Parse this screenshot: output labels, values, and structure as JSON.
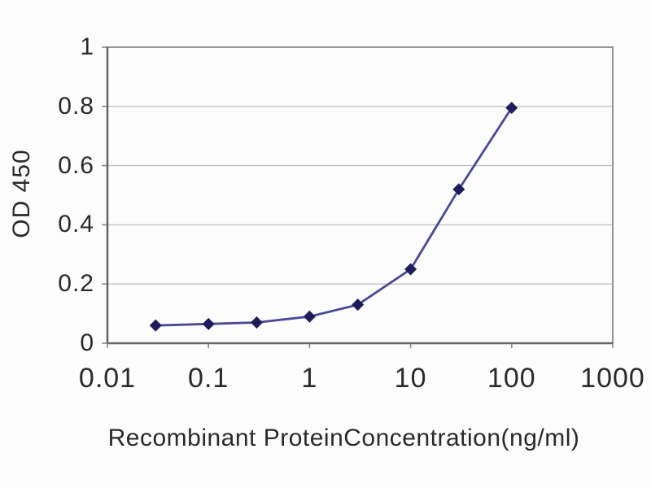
{
  "figure": {
    "background": "#fcfcfc"
  },
  "chart_data": {
    "type": "line",
    "xlabel": "Recombinant ProteinConcentration(ng/ml)",
    "ylabel": "OD 450",
    "x_scale": "log",
    "xlim": [
      0.01,
      1000
    ],
    "ylim": [
      0,
      1
    ],
    "x_ticks": [
      0.01,
      0.1,
      1,
      10,
      100,
      1000
    ],
    "x_tick_labels": [
      "0.01",
      "0.1",
      "1",
      "10",
      "100",
      "1000"
    ],
    "y_ticks": [
      0,
      0.2,
      0.4,
      0.6,
      0.8,
      1
    ],
    "y_tick_labels": [
      "0",
      "0.2",
      "0.4",
      "0.6",
      "0.8",
      "1"
    ],
    "grid": "horizontal",
    "legend": "none",
    "series": [
      {
        "name": "OD 450",
        "marker": "diamond",
        "x": [
          0.03,
          0.1,
          0.3,
          1,
          3,
          10,
          30,
          100
        ],
        "y": [
          0.06,
          0.065,
          0.07,
          0.09,
          0.13,
          0.25,
          0.52,
          0.795
        ]
      }
    ],
    "colors": {
      "line": "#4a4a94",
      "marker": "#1d1d5c",
      "grid": "#c2c2c2",
      "axis": "#8a8a8a",
      "axis_main": "#686868",
      "text": "#2a2a2a"
    }
  }
}
